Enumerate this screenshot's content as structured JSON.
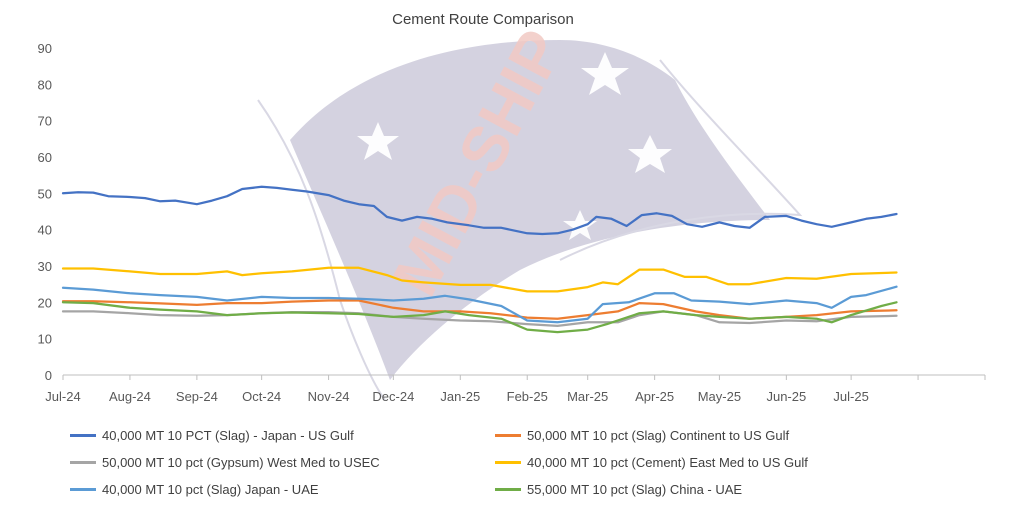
{
  "chart_data": {
    "type": "line",
    "title": "Cement Route Comparison",
    "ylim": [
      0,
      90
    ],
    "yticks": [
      0,
      10,
      20,
      30,
      40,
      50,
      60,
      70,
      80,
      90
    ],
    "xtick_labels": [
      "Jul-24",
      "Aug-24",
      "Sep-24",
      "Oct-24",
      "Nov-24",
      "Dec-24",
      "Jan-25",
      "Feb-25",
      "Mar-25",
      "Apr-25",
      "May-25",
      "Jun-25",
      "Jul-25"
    ],
    "x_start": "2024-07-01",
    "x_end": "2025-09-01",
    "grid": false,
    "legend_position": "bottom",
    "series": [
      {
        "name": "40,000 MT 10 PCT  (Slag) - Japan - US Gulf",
        "color": "#4472C4",
        "points": [
          [
            "2024-07-01",
            50
          ],
          [
            "2024-07-08",
            50.3
          ],
          [
            "2024-07-15",
            50.2
          ],
          [
            "2024-07-22",
            49.2
          ],
          [
            "2024-08-01",
            49
          ],
          [
            "2024-08-08",
            48.7
          ],
          [
            "2024-08-15",
            47.8
          ],
          [
            "2024-08-22",
            48
          ],
          [
            "2024-09-01",
            47
          ],
          [
            "2024-09-08",
            48
          ],
          [
            "2024-09-15",
            49.2
          ],
          [
            "2024-09-22",
            51.2
          ],
          [
            "2024-10-01",
            51.8
          ],
          [
            "2024-10-08",
            51.5
          ],
          [
            "2024-10-15",
            51
          ],
          [
            "2024-10-22",
            50.5
          ],
          [
            "2024-11-01",
            49.5
          ],
          [
            "2024-11-08",
            48
          ],
          [
            "2024-11-15",
            47
          ],
          [
            "2024-11-22",
            46.5
          ],
          [
            "2024-11-28",
            43.5
          ],
          [
            "2024-12-05",
            42.5
          ],
          [
            "2024-12-12",
            43.5
          ],
          [
            "2024-12-19",
            43
          ],
          [
            "2024-12-26",
            42
          ],
          [
            "2025-01-05",
            41.2
          ],
          [
            "2025-01-12",
            40.5
          ],
          [
            "2025-01-20",
            40.5
          ],
          [
            "2025-02-01",
            39
          ],
          [
            "2025-02-08",
            38.8
          ],
          [
            "2025-02-15",
            39
          ],
          [
            "2025-02-22",
            40
          ],
          [
            "2025-03-01",
            41.5
          ],
          [
            "2025-03-05",
            43.5
          ],
          [
            "2025-03-12",
            43
          ],
          [
            "2025-03-19",
            41
          ],
          [
            "2025-03-26",
            44
          ],
          [
            "2025-04-02",
            44.5
          ],
          [
            "2025-04-09",
            43.8
          ],
          [
            "2025-04-16",
            41.5
          ],
          [
            "2025-04-23",
            40.8
          ],
          [
            "2025-05-01",
            42
          ],
          [
            "2025-05-08",
            41
          ],
          [
            "2025-05-15",
            40.5
          ],
          [
            "2025-05-22",
            43.5
          ],
          [
            "2025-06-01",
            43.8
          ],
          [
            "2025-06-08",
            42.5
          ],
          [
            "2025-06-15",
            41.5
          ],
          [
            "2025-06-22",
            40.8
          ],
          [
            "2025-07-01",
            42
          ],
          [
            "2025-07-08",
            43
          ],
          [
            "2025-07-15",
            43.5
          ],
          [
            "2025-07-22",
            44.3
          ]
        ]
      },
      {
        "name": "50,000 MT 10 pct (Slag) Continent  to US Gulf",
        "color": "#ED7D31",
        "points": [
          [
            "2024-07-01",
            20.3
          ],
          [
            "2024-07-15",
            20.3
          ],
          [
            "2024-08-01",
            20
          ],
          [
            "2024-08-15",
            19.7
          ],
          [
            "2024-09-01",
            19.3
          ],
          [
            "2024-09-15",
            19.8
          ],
          [
            "2024-10-01",
            19.8
          ],
          [
            "2024-10-15",
            20.2
          ],
          [
            "2024-11-01",
            20.5
          ],
          [
            "2024-11-15",
            20.5
          ],
          [
            "2024-12-01",
            18.5
          ],
          [
            "2024-12-15",
            17.5
          ],
          [
            "2025-01-01",
            17.5
          ],
          [
            "2025-01-15",
            17
          ],
          [
            "2025-02-01",
            15.8
          ],
          [
            "2025-02-15",
            15.5
          ],
          [
            "2025-03-01",
            16.5
          ],
          [
            "2025-03-15",
            17.5
          ],
          [
            "2025-03-25",
            19.8
          ],
          [
            "2025-04-05",
            19.5
          ],
          [
            "2025-04-20",
            17.5
          ],
          [
            "2025-05-01",
            16.5
          ],
          [
            "2025-05-15",
            15.5
          ],
          [
            "2025-06-01",
            16
          ],
          [
            "2025-06-15",
            16.5
          ],
          [
            "2025-07-01",
            17.5
          ],
          [
            "2025-07-22",
            17.8
          ]
        ]
      },
      {
        "name": "50,000 MT 10 pct  (Gypsum) West Med  to USEC",
        "color": "#A5A5A5",
        "points": [
          [
            "2024-07-01",
            17.5
          ],
          [
            "2024-07-15",
            17.5
          ],
          [
            "2024-08-01",
            17
          ],
          [
            "2024-08-15",
            16.5
          ],
          [
            "2024-09-01",
            16.3
          ],
          [
            "2024-09-15",
            16.5
          ],
          [
            "2024-10-01",
            17
          ],
          [
            "2024-10-15",
            17.3
          ],
          [
            "2024-11-01",
            17.3
          ],
          [
            "2024-11-15",
            17
          ],
          [
            "2024-12-01",
            16
          ],
          [
            "2024-12-15",
            15.5
          ],
          [
            "2025-01-01",
            15
          ],
          [
            "2025-01-15",
            14.8
          ],
          [
            "2025-02-01",
            14
          ],
          [
            "2025-02-15",
            13.5
          ],
          [
            "2025-03-01",
            14.5
          ],
          [
            "2025-03-15",
            14.5
          ],
          [
            "2025-03-25",
            16.5
          ],
          [
            "2025-04-05",
            17.5
          ],
          [
            "2025-04-20",
            16.5
          ],
          [
            "2025-05-01",
            14.5
          ],
          [
            "2025-05-15",
            14.3
          ],
          [
            "2025-06-01",
            15
          ],
          [
            "2025-06-15",
            14.8
          ],
          [
            "2025-07-01",
            16
          ],
          [
            "2025-07-22",
            16.3
          ]
        ]
      },
      {
        "name": "40,000 MT 10 pct (Cement) East Med to US Gulf",
        "color": "#FFC000",
        "points": [
          [
            "2024-07-01",
            29.3
          ],
          [
            "2024-07-15",
            29.3
          ],
          [
            "2024-08-01",
            28.5
          ],
          [
            "2024-08-15",
            27.8
          ],
          [
            "2024-09-01",
            27.8
          ],
          [
            "2024-09-15",
            28.5
          ],
          [
            "2024-09-22",
            27.5
          ],
          [
            "2024-10-01",
            28
          ],
          [
            "2024-10-15",
            28.5
          ],
          [
            "2024-11-01",
            29.5
          ],
          [
            "2024-11-15",
            29.5
          ],
          [
            "2024-11-28",
            27.5
          ],
          [
            "2024-12-05",
            26
          ],
          [
            "2024-12-15",
            25.5
          ],
          [
            "2025-01-01",
            24.8
          ],
          [
            "2025-01-15",
            24.8
          ],
          [
            "2025-02-01",
            23
          ],
          [
            "2025-02-15",
            23
          ],
          [
            "2025-03-01",
            24.2
          ],
          [
            "2025-03-08",
            25.5
          ],
          [
            "2025-03-15",
            25
          ],
          [
            "2025-03-25",
            29
          ],
          [
            "2025-04-05",
            29
          ],
          [
            "2025-04-15",
            27
          ],
          [
            "2025-04-25",
            27
          ],
          [
            "2025-05-05",
            25
          ],
          [
            "2025-05-15",
            25
          ],
          [
            "2025-06-01",
            26.7
          ],
          [
            "2025-06-15",
            26.5
          ],
          [
            "2025-07-01",
            27.8
          ],
          [
            "2025-07-22",
            28.2
          ]
        ]
      },
      {
        "name": "40,000 MT 10 pct  (Slag) Japan - UAE",
        "color": "#5B9BD5",
        "points": [
          [
            "2024-07-01",
            24
          ],
          [
            "2024-07-15",
            23.5
          ],
          [
            "2024-08-01",
            22.5
          ],
          [
            "2024-08-15",
            22
          ],
          [
            "2024-09-01",
            21.5
          ],
          [
            "2024-09-15",
            20.5
          ],
          [
            "2024-10-01",
            21.5
          ],
          [
            "2024-10-15",
            21.2
          ],
          [
            "2024-11-01",
            21.2
          ],
          [
            "2024-11-15",
            21
          ],
          [
            "2024-12-01",
            20.5
          ],
          [
            "2024-12-15",
            21
          ],
          [
            "2024-12-25",
            21.8
          ],
          [
            "2025-01-05",
            20.8
          ],
          [
            "2025-01-20",
            19
          ],
          [
            "2025-02-01",
            15
          ],
          [
            "2025-02-15",
            14.5
          ],
          [
            "2025-03-01",
            15.5
          ],
          [
            "2025-03-08",
            19.5
          ],
          [
            "2025-03-20",
            20
          ],
          [
            "2025-04-01",
            22.5
          ],
          [
            "2025-04-10",
            22.5
          ],
          [
            "2025-04-18",
            20.5
          ],
          [
            "2025-05-01",
            20.2
          ],
          [
            "2025-05-15",
            19.5
          ],
          [
            "2025-06-01",
            20.5
          ],
          [
            "2025-06-15",
            19.8
          ],
          [
            "2025-06-22",
            18.5
          ],
          [
            "2025-07-01",
            21.5
          ],
          [
            "2025-07-08",
            22
          ],
          [
            "2025-07-22",
            24.3
          ]
        ]
      },
      {
        "name": "55,000 MT 10 pct  (Slag) China - UAE",
        "color": "#70AD47",
        "points": [
          [
            "2024-07-01",
            20
          ],
          [
            "2024-07-15",
            19.8
          ],
          [
            "2024-08-01",
            18.5
          ],
          [
            "2024-08-15",
            18
          ],
          [
            "2024-09-01",
            17.5
          ],
          [
            "2024-09-15",
            16.5
          ],
          [
            "2024-10-01",
            17
          ],
          [
            "2024-10-15",
            17.2
          ],
          [
            "2024-11-01",
            17
          ],
          [
            "2024-11-15",
            16.8
          ],
          [
            "2024-12-01",
            16
          ],
          [
            "2024-12-15",
            16.5
          ],
          [
            "2024-12-25",
            17.5
          ],
          [
            "2025-01-05",
            16.5
          ],
          [
            "2025-01-20",
            15.5
          ],
          [
            "2025-02-01",
            12.5
          ],
          [
            "2025-02-15",
            11.8
          ],
          [
            "2025-03-01",
            12.5
          ],
          [
            "2025-03-10",
            14
          ],
          [
            "2025-03-25",
            17
          ],
          [
            "2025-04-05",
            17.5
          ],
          [
            "2025-04-20",
            16.5
          ],
          [
            "2025-05-01",
            16
          ],
          [
            "2025-05-15",
            15.5
          ],
          [
            "2025-06-01",
            16
          ],
          [
            "2025-06-15",
            15.5
          ],
          [
            "2025-06-22",
            14.5
          ],
          [
            "2025-07-01",
            16.5
          ],
          [
            "2025-07-15",
            19
          ],
          [
            "2025-07-22",
            20
          ]
        ]
      }
    ]
  },
  "watermark": {
    "text": "MID-SHIP",
    "flag_color": "#C5C3D6",
    "text_color": "#F2C9C4"
  }
}
